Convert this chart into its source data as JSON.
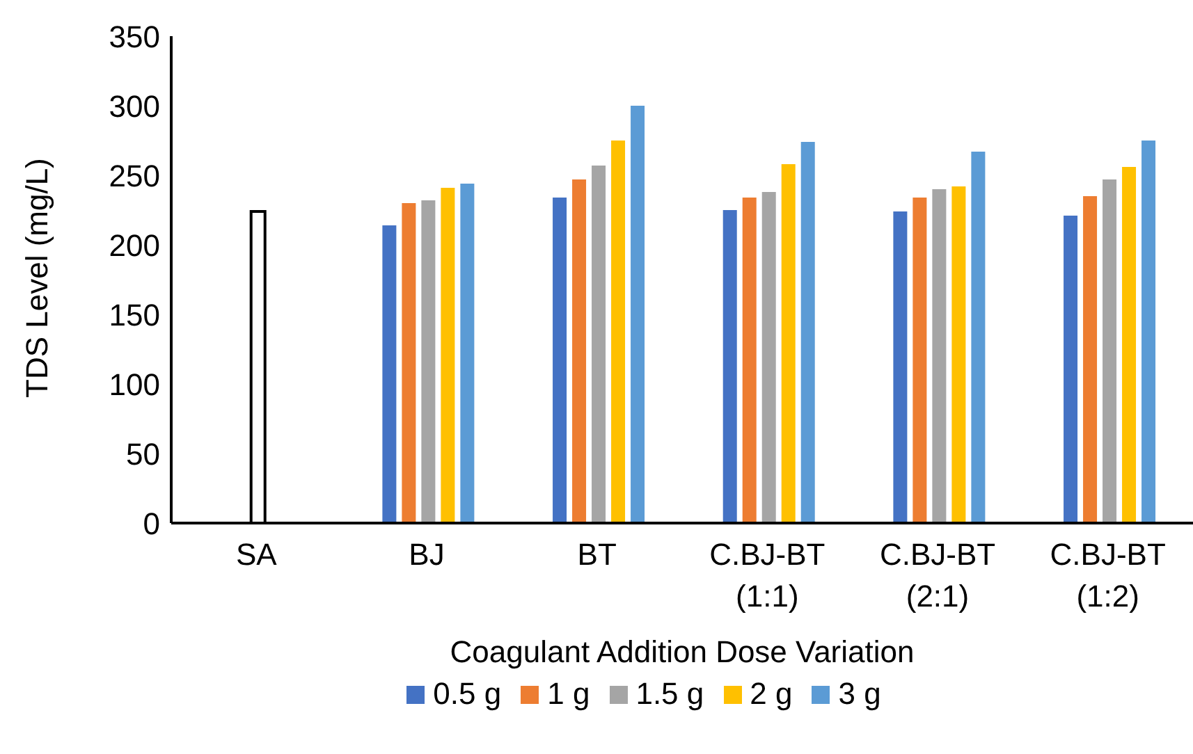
{
  "chart_data": {
    "type": "bar",
    "xlabel": "Coagulant Addition Dose Variation",
    "ylabel": "TDS Level (mg/L)",
    "categories": [
      "SA",
      "BJ",
      "BT",
      "C.BJ-BT\n(1:1)",
      "C.BJ-BT\n(2:1)",
      "C.BJ-BT\n(1:2)"
    ],
    "series": [
      {
        "color": "#ffffff",
        "values": [
          224,
          null,
          null,
          null,
          null,
          null
        ]
      },
      {
        "name": "0.5 g",
        "color": "#4472c4",
        "values": [
          null,
          214,
          234,
          225,
          224,
          221
        ]
      },
      {
        "name": "1 g",
        "color": "#ed7d31",
        "values": [
          null,
          230,
          247,
          234,
          234,
          235
        ]
      },
      {
        "name": "1.5 g",
        "color": "#a5a5a5",
        "values": [
          null,
          232,
          257,
          238,
          240,
          247
        ]
      },
      {
        "name": "2 g",
        "color": "#ffc000",
        "values": [
          null,
          241,
          275,
          258,
          242,
          256
        ]
      },
      {
        "name": "3 g",
        "color": "#5b9bd5",
        "values": [
          null,
          244,
          300,
          274,
          267,
          275
        ]
      }
    ],
    "ylim": [
      0,
      350
    ],
    "yticks": [
      0,
      50,
      100,
      150,
      200,
      250,
      300,
      350
    ],
    "grid": false,
    "legend": "bottom"
  }
}
